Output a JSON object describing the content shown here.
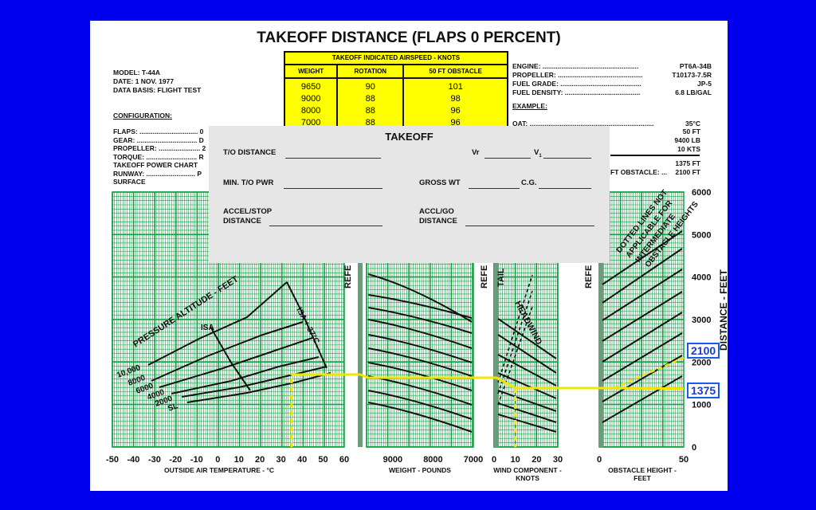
{
  "title": "TAKEOFF DISTANCE (FLAPS 0 PERCENT)",
  "model_info": [
    "MODEL:  T-44A",
    "DATE:  1 NOV. 1977",
    "DATA BASIS:  FLIGHT TEST"
  ],
  "configuration": {
    "heading": "CONFIGURATION:",
    "lines": [
      "FLAPS: ............................... 0",
      "GEAR: ................................ D",
      "PROPELLER: ...................... 2",
      "TORQUE: ........................... R",
      "  TAKEOFF POWER CHART",
      "RUNWAY: .......................... P",
      "  SURFACE"
    ]
  },
  "engine_info": [
    {
      "label": "ENGINE: ...................................................",
      "value": "PT6A-34B"
    },
    {
      "label": "PROPELLER: .............................................",
      "value": "T10173-7.5R"
    },
    {
      "label": "FUEL GRADE: ...........................................",
      "value": "JP-5"
    },
    {
      "label": "FUEL DENSITY: ........................................",
      "value": "6.8 LB/GAL"
    }
  ],
  "example": {
    "heading": "EXAMPLE:",
    "lines": [
      {
        "label": "OAT: ..................................................................",
        "value": "35°C"
      },
      {
        "label": "",
        "value": "50 FT"
      },
      {
        "label": "",
        "value": "9400 LB"
      },
      {
        "label": "",
        "value": "10 KTS"
      },
      {
        "label": "",
        "value": "1375 FT"
      },
      {
        "label": "FT OBSTACLE: ...",
        "value": "2100 FT"
      }
    ]
  },
  "airspeed_table": {
    "header": "TAKEOFF INDICATED AIRSPEED  -  KNOTS",
    "columns": [
      "WEIGHT",
      "ROTATION",
      "50 FT OBSTACLE"
    ],
    "rows": [
      [
        "9650",
        "90",
        "101"
      ],
      [
        "9000",
        "88",
        "98"
      ],
      [
        "8000",
        "88",
        "96"
      ],
      [
        "7000",
        "88",
        "96"
      ]
    ]
  },
  "takeoff_card": {
    "title": "TAKEOFF",
    "to_distance": "T/O DISTANCE",
    "vr": "Vr",
    "v1": "V",
    "v1_sub": "1",
    "min_to_pwr": "MIN. T/O PWR",
    "gross_wt": "GROSS WT",
    "cg": "C.G.",
    "accel_stop": [
      "ACCEL/STOP",
      "DISTANCE"
    ],
    "accl_go": [
      "ACCL/GO",
      "DISTANCE"
    ]
  },
  "callouts": [
    "2100",
    "1375"
  ],
  "chart_data": {
    "type": "line",
    "panels": [
      {
        "name": "oat",
        "xlabel": "OUTSIDE AIR TEMPERATURE - °C",
        "ticks": [
          -50,
          -40,
          -30,
          -20,
          -10,
          0,
          10,
          20,
          30,
          40,
          50,
          60
        ],
        "xlim": [
          -50,
          60
        ],
        "curve_labels": [
          "PRESSURE ALTITUDE - FEET",
          "ISA",
          "ISA + 37°C"
        ],
        "altitude_labels": [
          "10,000",
          "8000",
          "6000",
          "4000",
          "2000",
          "SL"
        ]
      },
      {
        "name": "weight",
        "xlabel": "WEIGHT - POUNDS",
        "ticks": [
          9000,
          8000,
          7000
        ],
        "xlim": [
          9650,
          7000
        ],
        "reference_label": "REFE"
      },
      {
        "name": "wind",
        "xlabel": "WIND COMPONENT - KNOTS",
        "ticks": [
          0,
          10,
          20,
          30
        ],
        "xlim": [
          0,
          30
        ],
        "reference_label": "REFE",
        "curve_labels": [
          "TAIL",
          "HEADWIND"
        ]
      },
      {
        "name": "obstacle",
        "xlabel": "OBSTACLE HEIGHT - FEET",
        "ticks": [
          0,
          50
        ],
        "xlim": [
          0,
          50
        ],
        "reference_label": "REFE",
        "curve_labels": [
          "DOTTED LINES NOT",
          "APPLICABLE FOR",
          "INTERMEDIATE",
          "OBSTACLE HEIGHTS"
        ]
      }
    ],
    "y_axis": {
      "ylabel": "DISTANCE - FEET",
      "ticks": [
        0,
        1000,
        2000,
        3000,
        4000,
        5000,
        6000
      ],
      "ylim": [
        0,
        6000
      ]
    },
    "example_path": {
      "oat": 35,
      "weight": 9400,
      "wind": 10,
      "obstacle": 50,
      "ground_run": 1375,
      "total_over_obstacle": 2100
    }
  }
}
